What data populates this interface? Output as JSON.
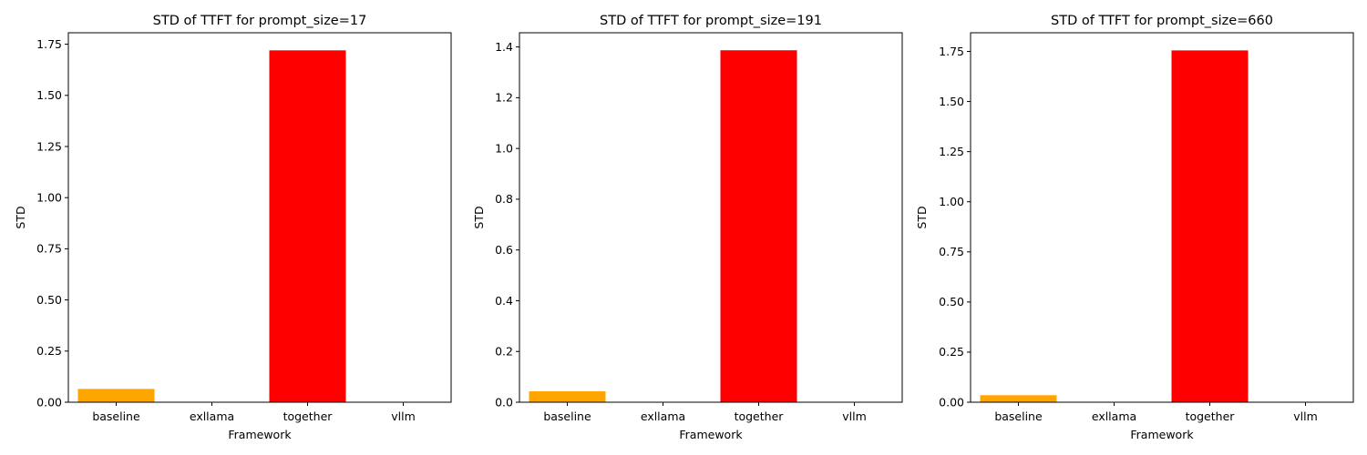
{
  "chart_data": [
    {
      "type": "bar",
      "title": "STD of TTFT for prompt_size=17",
      "xlabel": "Framework",
      "ylabel": "STD",
      "categories": [
        "baseline",
        "exllama",
        "together",
        "vllm"
      ],
      "values": [
        0.065,
        0.0,
        1.72,
        0.0
      ],
      "colors": [
        "#ffa500",
        "#ffa500",
        "#ff0000",
        "#ff0000"
      ],
      "ylim": [
        0,
        1.806
      ],
      "yticks": [
        0.0,
        0.25,
        0.5,
        0.75,
        1.0,
        1.25,
        1.5,
        1.75
      ],
      "ytick_labels": [
        "0.00",
        "0.25",
        "0.50",
        "0.75",
        "1.00",
        "1.25",
        "1.50",
        "1.75"
      ]
    },
    {
      "type": "bar",
      "title": "STD of TTFT for prompt_size=191",
      "xlabel": "Framework",
      "ylabel": "STD",
      "categories": [
        "baseline",
        "exllama",
        "together",
        "vllm"
      ],
      "values": [
        0.043,
        0.0,
        1.387,
        0.0
      ],
      "colors": [
        "#ffa500",
        "#ffa500",
        "#ff0000",
        "#ff0000"
      ],
      "ylim": [
        0,
        1.456
      ],
      "yticks": [
        0.0,
        0.2,
        0.4,
        0.6,
        0.8,
        1.0,
        1.2,
        1.4
      ],
      "ytick_labels": [
        "0.0",
        "0.2",
        "0.4",
        "0.6",
        "0.8",
        "1.0",
        "1.2",
        "1.4"
      ]
    },
    {
      "type": "bar",
      "title": "STD of TTFT for prompt_size=660",
      "xlabel": "Framework",
      "ylabel": "STD",
      "categories": [
        "baseline",
        "exllama",
        "together",
        "vllm"
      ],
      "values": [
        0.035,
        0.0,
        1.755,
        0.0
      ],
      "colors": [
        "#ffa500",
        "#ffa500",
        "#ff0000",
        "#ff0000"
      ],
      "ylim": [
        0,
        1.843
      ],
      "yticks": [
        0.0,
        0.25,
        0.5,
        0.75,
        1.0,
        1.25,
        1.5,
        1.75
      ],
      "ytick_labels": [
        "0.00",
        "0.25",
        "0.50",
        "0.75",
        "1.00",
        "1.25",
        "1.50",
        "1.75"
      ]
    }
  ]
}
